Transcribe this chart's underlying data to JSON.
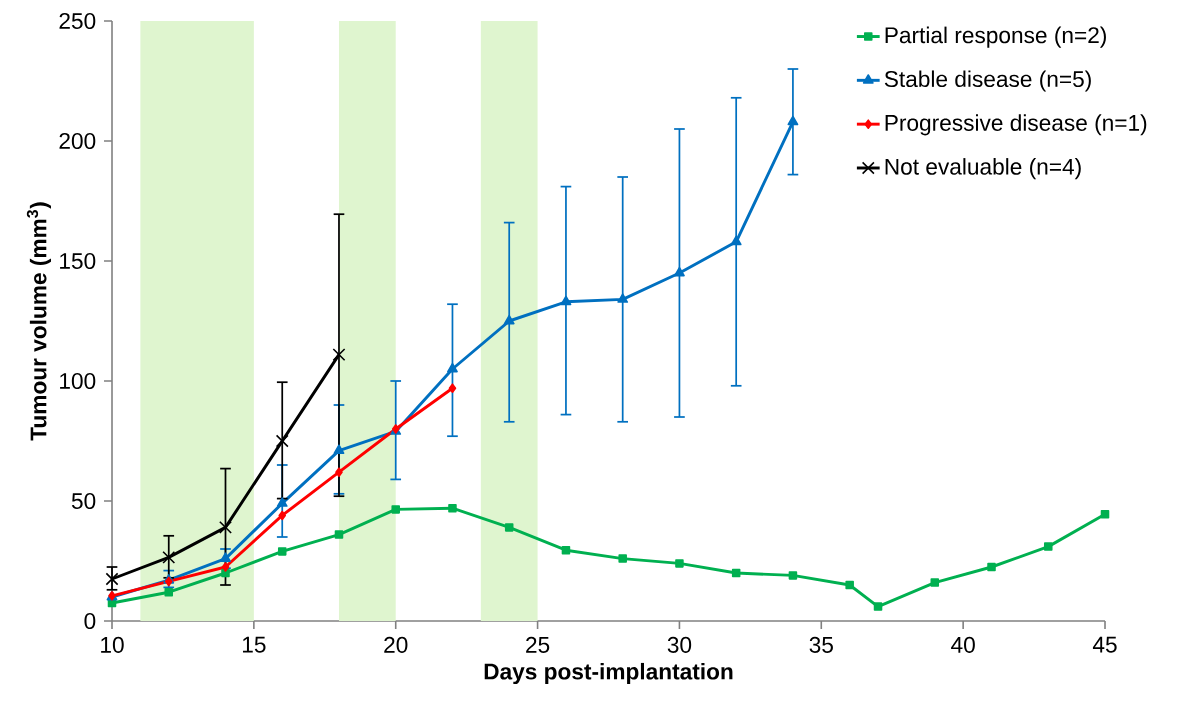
{
  "chart_data": {
    "type": "line",
    "xlabel": "Days post-implantation",
    "ylabel": "Tumour volume (mm$^{3}$)",
    "xlim": [
      10,
      45
    ],
    "ylim": [
      0,
      250
    ],
    "xticks": [
      10,
      15,
      20,
      25,
      30,
      35,
      40,
      45
    ],
    "yticks": [
      0,
      50,
      100,
      150,
      200,
      250
    ],
    "grid": false,
    "legend": "top right",
    "line_style": "solid",
    "bands": [
      {
        "axis": "x",
        "from": 11,
        "to": 15,
        "color": "#dff5cf"
      },
      {
        "axis": "x",
        "from": 18,
        "to": 20,
        "color": "#dff5cf"
      },
      {
        "axis": "x",
        "from": 23,
        "to": 25,
        "color": "#dff5cf"
      }
    ],
    "series": [
      {
        "name": "Partial response (n=2)",
        "color": "#00b050",
        "marker": "square",
        "x": [
          10,
          12,
          14,
          16,
          18,
          20,
          22,
          24,
          26,
          28,
          30,
          32,
          34,
          36,
          37,
          39,
          41,
          43,
          45
        ],
        "values": [
          7.5,
          12,
          20,
          29,
          36,
          46.5,
          47,
          39,
          29.5,
          26,
          24,
          20,
          19,
          15,
          6,
          16,
          22.5,
          31,
          44.5
        ]
      },
      {
        "name": "Stable disease (n=5)",
        "color": "#0070c0",
        "marker": "triangle",
        "x": [
          10,
          12,
          14,
          16,
          18,
          20,
          22,
          24,
          26,
          28,
          30,
          32,
          34
        ],
        "values": [
          10,
          17,
          26,
          49,
          71,
          79,
          105,
          125,
          133,
          134,
          145,
          158,
          208
        ],
        "errors": [
          null,
          [
            14,
            21
          ],
          [
            22,
            30
          ],
          [
            35,
            65
          ],
          [
            53,
            90
          ],
          [
            59,
            100
          ],
          [
            77,
            132
          ],
          [
            83,
            166
          ],
          [
            86,
            181
          ],
          [
            83,
            185
          ],
          [
            85,
            205
          ],
          [
            98,
            218
          ],
          [
            186,
            230
          ]
        ]
      },
      {
        "name": "Progressive disease (n=1)",
        "color": "#ff0000",
        "marker": "diamond",
        "x": [
          10,
          12,
          14,
          16,
          18,
          20,
          22
        ],
        "values": [
          10.5,
          16.5,
          22.5,
          44,
          62,
          80,
          97
        ]
      },
      {
        "name": "Not evaluable (n=4)",
        "color": "#000000",
        "marker": "cross",
        "x": [
          10,
          12,
          14,
          16,
          18
        ],
        "values": [
          17.5,
          26.5,
          39,
          75,
          111
        ],
        "errors": [
          [
            13,
            22.5
          ],
          [
            18,
            35.5
          ],
          [
            15,
            63.5
          ],
          [
            51,
            99.5
          ],
          [
            52,
            169.5
          ]
        ]
      }
    ]
  }
}
